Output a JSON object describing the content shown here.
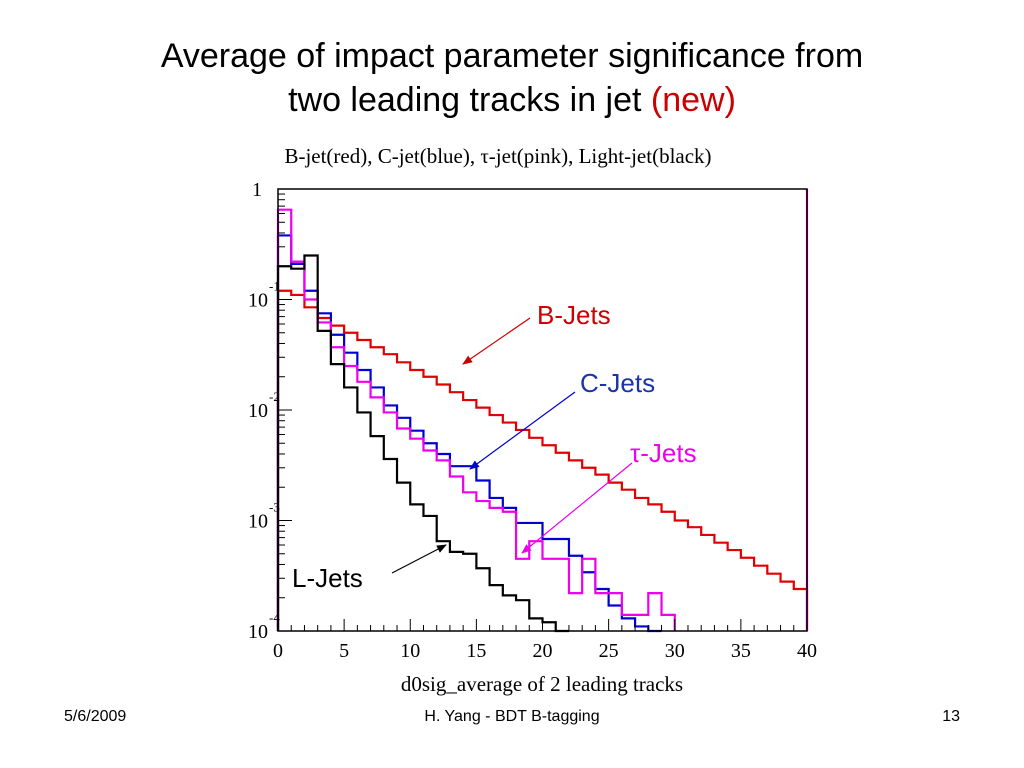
{
  "slide": {
    "title_line1": "Average of impact parameter significance from",
    "title_line2_prefix": "two leading tracks in jet ",
    "title_line2_highlight": "(new)",
    "title_highlight_color": "#cc0000",
    "footer_date": "5/6/2009",
    "footer_center": "H. Yang - BDT B-tagging",
    "footer_page": "13"
  },
  "chart_data": {
    "type": "line",
    "title": "B-jet(red), C-jet(blue), τ-jet(pink), Light-jet(black)",
    "xlabel": "d0sig_average of 2 leading tracks",
    "ylabel": "",
    "xlim": [
      0,
      40
    ],
    "ylim": [
      0.0001,
      1
    ],
    "y_scale": "log",
    "x_ticks": [
      "0",
      "5",
      "10",
      "15",
      "20",
      "25",
      "30",
      "35",
      "40"
    ],
    "y_ticks": [
      {
        "base": "10",
        "exp": "-4",
        "value": 0.0001
      },
      {
        "base": "10",
        "exp": "-3",
        "value": 0.001
      },
      {
        "base": "10",
        "exp": "-2",
        "value": 0.01
      },
      {
        "base": "10",
        "exp": "-1",
        "value": 0.1
      },
      {
        "base": "1",
        "exp": "",
        "value": 1
      }
    ],
    "grid": false,
    "bin_width": 1,
    "series": [
      {
        "name": "B-jet",
        "color": "#e00000",
        "x": [
          0,
          1,
          2,
          3,
          4,
          5,
          6,
          7,
          8,
          9,
          10,
          11,
          12,
          13,
          14,
          15,
          16,
          17,
          18,
          19,
          20,
          21,
          22,
          23,
          24,
          25,
          26,
          27,
          28,
          29,
          30,
          31,
          32,
          33,
          34,
          35,
          36,
          37,
          38,
          39
        ],
        "values": [
          0.12,
          0.11,
          0.085,
          0.068,
          0.058,
          0.05,
          0.043,
          0.037,
          0.032,
          0.027,
          0.023,
          0.02,
          0.017,
          0.0145,
          0.0123,
          0.0105,
          0.009,
          0.0077,
          0.0066,
          0.0056,
          0.0048,
          0.0041,
          0.0035,
          0.003,
          0.0026,
          0.0022,
          0.0019,
          0.0016,
          0.0014,
          0.0012,
          0.001,
          0.00087,
          0.00074,
          0.00063,
          0.00054,
          0.00046,
          0.00039,
          0.00033,
          0.00028,
          0.00024
        ]
      },
      {
        "name": "C-jet",
        "color": "#0000d0",
        "x": [
          0,
          1,
          2,
          3,
          4,
          5,
          6,
          7,
          8,
          9,
          10,
          11,
          12,
          13,
          14,
          15,
          16,
          17,
          18,
          19,
          20,
          21,
          22,
          23,
          24,
          25,
          26,
          27,
          28
        ],
        "values": [
          0.38,
          0.21,
          0.12,
          0.075,
          0.048,
          0.033,
          0.023,
          0.016,
          0.011,
          0.0085,
          0.0065,
          0.005,
          0.004,
          0.0031,
          0.0031,
          0.0023,
          0.0016,
          0.0013,
          0.00095,
          0.00095,
          0.00068,
          0.00068,
          0.00048,
          0.00034,
          0.00024,
          0.00017,
          0.00013,
          0.00011,
          0.0001
        ]
      },
      {
        "name": "τ-jet",
        "color": "#ee00ee",
        "x": [
          0,
          1,
          2,
          3,
          4,
          5,
          6,
          7,
          8,
          9,
          10,
          11,
          12,
          13,
          14,
          15,
          16,
          17,
          18,
          19,
          20,
          21,
          22,
          23,
          24,
          25,
          26,
          27,
          28,
          29
        ],
        "values": [
          0.65,
          0.22,
          0.1,
          0.062,
          0.037,
          0.025,
          0.018,
          0.013,
          0.0095,
          0.0068,
          0.0055,
          0.0043,
          0.0035,
          0.0025,
          0.0018,
          0.0015,
          0.0013,
          0.0012,
          0.00045,
          0.00065,
          0.00045,
          0.00045,
          0.00022,
          0.00045,
          0.00022,
          0.00022,
          0.00014,
          0.00014,
          0.00022,
          0.00014
        ]
      },
      {
        "name": "Light-jet",
        "color": "#000000",
        "x": [
          0,
          1,
          2,
          3,
          4,
          5,
          6,
          7,
          8,
          9,
          10,
          11,
          12,
          13,
          14,
          15,
          16,
          17,
          18,
          19,
          20,
          21
        ],
        "values": [
          0.2,
          0.19,
          0.25,
          0.052,
          0.026,
          0.016,
          0.0095,
          0.0058,
          0.0036,
          0.0022,
          0.0014,
          0.0011,
          0.00065,
          0.00052,
          0.0005,
          0.00037,
          0.00026,
          0.00021,
          0.00019,
          0.00013,
          0.00012,
          0.0001
        ]
      }
    ],
    "annotations": [
      {
        "name": "b-jets",
        "text": "B-Jets",
        "color": "#cc0000"
      },
      {
        "name": "c-jets",
        "text": "C-Jets",
        "color": "#1a33aa"
      },
      {
        "name": "tau-jets",
        "text": "τ-Jets",
        "color": "#ee00ee"
      },
      {
        "name": "l-jets",
        "text": "L-Jets",
        "color": "#000000"
      }
    ]
  }
}
